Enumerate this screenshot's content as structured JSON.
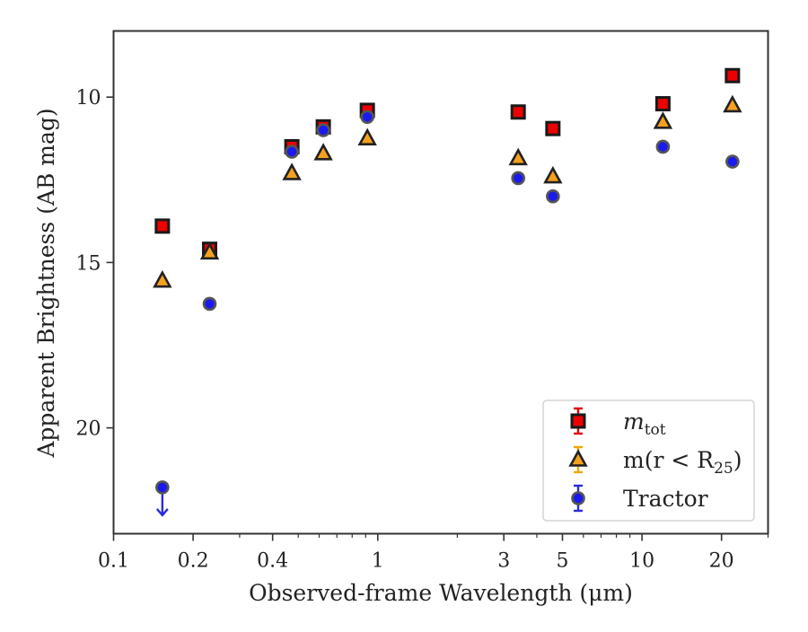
{
  "chart_data": {
    "type": "scatter",
    "xlabel": "Observed-frame Wavelength (μm)",
    "ylabel": "Apparent Brightness (AB mag)",
    "xscale": "log",
    "xlim": [
      0.1,
      30
    ],
    "ylim": [
      23.2,
      8.0
    ],
    "y_inverted": true,
    "xticks": [
      {
        "value": 0.1,
        "label": "0.1"
      },
      {
        "value": 0.2,
        "label": "0.2"
      },
      {
        "value": 0.4,
        "label": "0.4"
      },
      {
        "value": 1,
        "label": "1"
      },
      {
        "value": 3,
        "label": "3"
      },
      {
        "value": 5,
        "label": "5"
      },
      {
        "value": 10,
        "label": "10"
      },
      {
        "value": 20,
        "label": "20"
      }
    ],
    "yticks": [
      {
        "value": 10,
        "label": "10"
      },
      {
        "value": 15,
        "label": "15"
      },
      {
        "value": 20,
        "label": "20"
      }
    ],
    "legend_position": "lower-right",
    "series": [
      {
        "label_main": "m",
        "label_sub": "tot",
        "marker": "square",
        "color": "#ee0000",
        "edge": "#1a1a1a",
        "errorbar_color": "#e00000",
        "points": [
          {
            "x": 0.153,
            "y": 13.9
          },
          {
            "x": 0.231,
            "y": 14.6
          },
          {
            "x": 0.473,
            "y": 11.5
          },
          {
            "x": 0.622,
            "y": 10.9
          },
          {
            "x": 0.913,
            "y": 10.4
          },
          {
            "x": 3.4,
            "y": 10.45
          },
          {
            "x": 4.6,
            "y": 10.95
          },
          {
            "x": 12.0,
            "y": 10.2
          },
          {
            "x": 22.0,
            "y": 9.35
          }
        ]
      },
      {
        "label_main": "m(r < R",
        "label_sub": "25",
        "label_tail": ")",
        "marker": "triangle",
        "color": "#f5a11f",
        "edge": "#222222",
        "errorbar_color": "#f0a800",
        "points": [
          {
            "x": 0.153,
            "y": 15.55
          },
          {
            "x": 0.231,
            "y": 14.7
          },
          {
            "x": 0.473,
            "y": 12.3
          },
          {
            "x": 0.622,
            "y": 11.7
          },
          {
            "x": 0.913,
            "y": 11.25
          },
          {
            "x": 3.4,
            "y": 11.85
          },
          {
            "x": 4.6,
            "y": 12.4
          },
          {
            "x": 12.0,
            "y": 10.75
          },
          {
            "x": 22.0,
            "y": 10.25
          }
        ]
      },
      {
        "label_main": "Tractor",
        "marker": "circle",
        "color": "#1a1aee",
        "edge": "#555555",
        "errorbar_color": "#2a2ae0",
        "upper_limit": [
          0
        ],
        "points": [
          {
            "x": 0.153,
            "y": 21.8
          },
          {
            "x": 0.231,
            "y": 16.25
          },
          {
            "x": 0.473,
            "y": 11.65
          },
          {
            "x": 0.622,
            "y": 11.0
          },
          {
            "x": 0.913,
            "y": 10.6
          },
          {
            "x": 3.4,
            "y": 12.45
          },
          {
            "x": 4.6,
            "y": 13.0
          },
          {
            "x": 12.0,
            "y": 11.5
          },
          {
            "x": 22.0,
            "y": 11.95
          }
        ]
      }
    ]
  }
}
